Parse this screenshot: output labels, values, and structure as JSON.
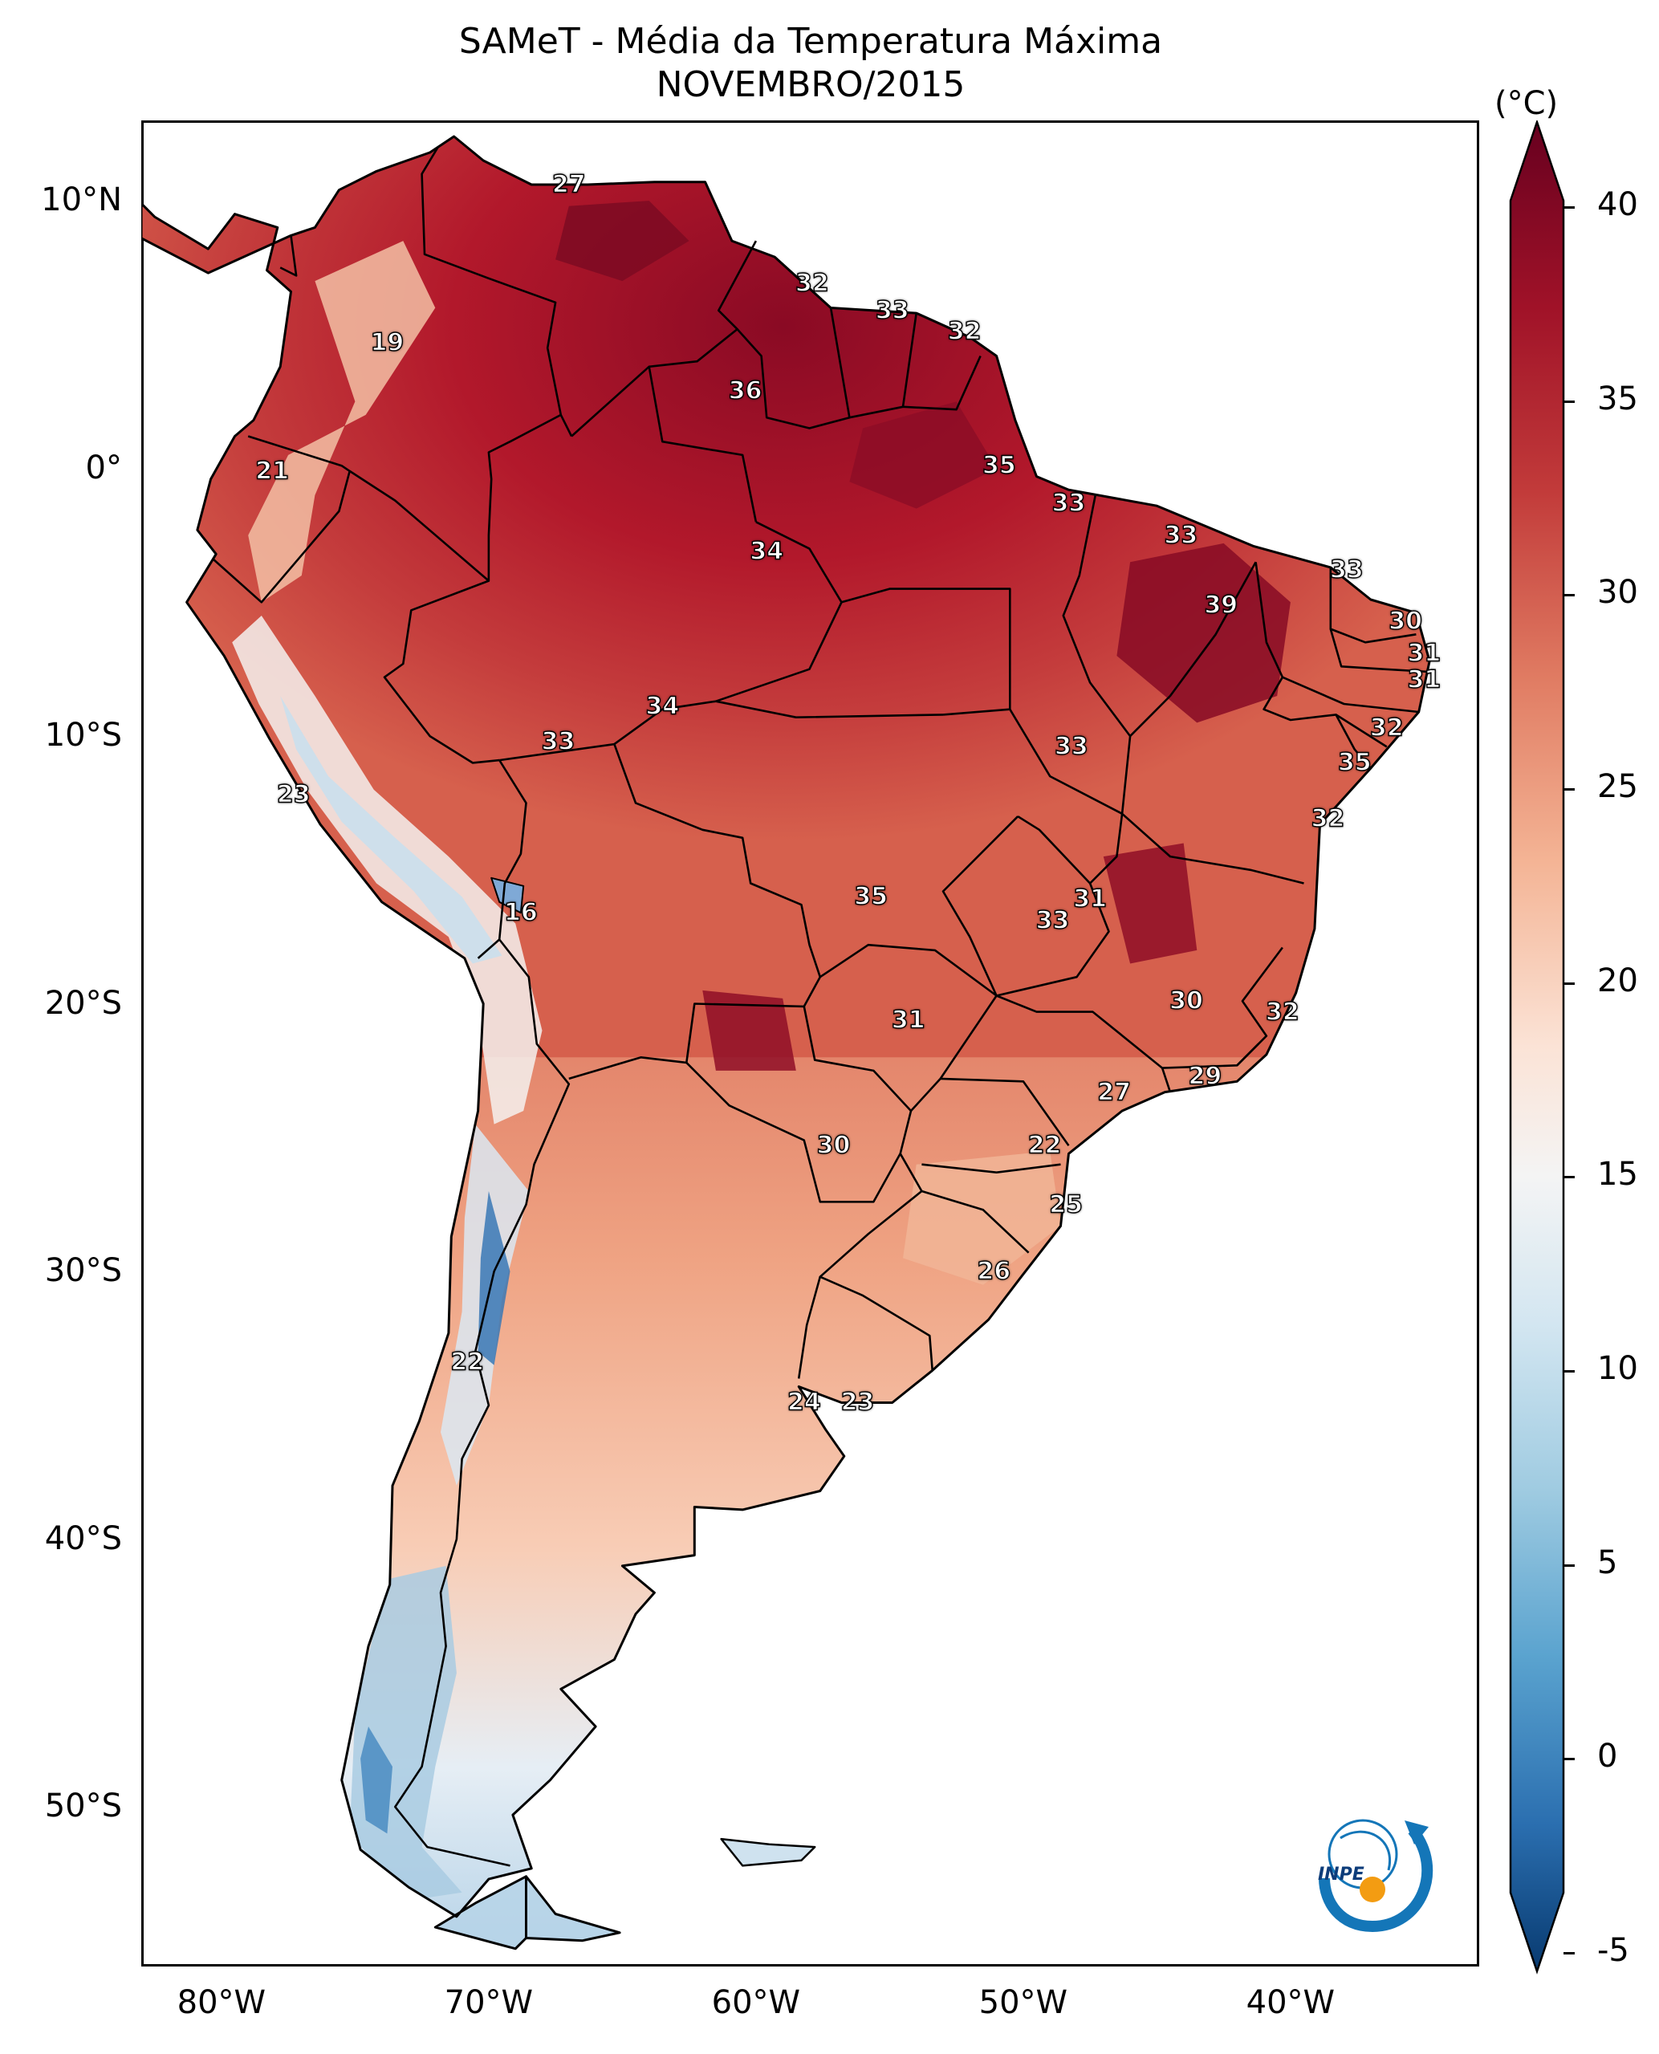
{
  "title": "SAMeT - Média da Temperatura Máxima",
  "subtitle": "NOVEMBRO/2015",
  "colorbar": {
    "unit": "(°C)",
    "ticks": [
      "40",
      "35",
      "30",
      "25",
      "20",
      "15",
      "10",
      "5",
      "0",
      "-5"
    ],
    "colors": [
      "#67001f",
      "#b2182b",
      "#d6604d",
      "#f4a582",
      "#fddbc7",
      "#f7f7f7",
      "#d1e5f0",
      "#92c5de",
      "#4393c3",
      "#2166ac",
      "#053061"
    ]
  },
  "lat_ticks": [
    "10°N",
    "0°",
    "10°S",
    "20°S",
    "30°S",
    "40°S",
    "50°S"
  ],
  "lon_ticks": [
    "80°W",
    "70°W",
    "60°W",
    "50°W",
    "40°W"
  ],
  "map": {
    "region": "South America",
    "contour_labels": [
      {
        "value": "27",
        "lon": -67.0,
        "lat": 10.6
      },
      {
        "value": "32",
        "lon": -57.9,
        "lat": 6.9
      },
      {
        "value": "33",
        "lon": -54.9,
        "lat": 5.9
      },
      {
        "value": "32",
        "lon": -52.2,
        "lat": 5.1
      },
      {
        "value": "19",
        "lon": -73.8,
        "lat": 4.7
      },
      {
        "value": "36",
        "lon": -60.4,
        "lat": 2.9
      },
      {
        "value": "21",
        "lon": -78.1,
        "lat": -0.1
      },
      {
        "value": "35",
        "lon": -50.9,
        "lat": 0.1
      },
      {
        "value": "33",
        "lon": -48.3,
        "lat": -1.3
      },
      {
        "value": "33",
        "lon": -44.1,
        "lat": -2.5
      },
      {
        "value": "34",
        "lon": -59.6,
        "lat": -3.1
      },
      {
        "value": "33",
        "lon": -37.9,
        "lat": -3.8
      },
      {
        "value": "39",
        "lon": -42.6,
        "lat": -5.1
      },
      {
        "value": "30",
        "lon": -35.7,
        "lat": -5.7
      },
      {
        "value": "31",
        "lon": -35.0,
        "lat": -6.9
      },
      {
        "value": "31",
        "lon": -35.0,
        "lat": -7.9
      },
      {
        "value": "34",
        "lon": -63.5,
        "lat": -8.9
      },
      {
        "value": "33",
        "lon": -67.4,
        "lat": -10.2
      },
      {
        "value": "33",
        "lon": -48.2,
        "lat": -10.4
      },
      {
        "value": "32",
        "lon": -36.4,
        "lat": -9.7
      },
      {
        "value": "35",
        "lon": -37.6,
        "lat": -11.0
      },
      {
        "value": "23",
        "lon": -77.3,
        "lat": -12.2
      },
      {
        "value": "32",
        "lon": -38.6,
        "lat": -13.1
      },
      {
        "value": "35",
        "lon": -55.7,
        "lat": -16.0
      },
      {
        "value": "31",
        "lon": -47.5,
        "lat": -16.1
      },
      {
        "value": "33",
        "lon": -48.9,
        "lat": -16.9
      },
      {
        "value": "16",
        "lon": -68.8,
        "lat": -16.6
      },
      {
        "value": "30",
        "lon": -43.9,
        "lat": -19.9
      },
      {
        "value": "32",
        "lon": -40.3,
        "lat": -20.3
      },
      {
        "value": "31",
        "lon": -54.3,
        "lat": -20.6
      },
      {
        "value": "27",
        "lon": -46.6,
        "lat": -23.3
      },
      {
        "value": "29",
        "lon": -43.2,
        "lat": -22.7
      },
      {
        "value": "30",
        "lon": -57.1,
        "lat": -25.3
      },
      {
        "value": "22",
        "lon": -49.2,
        "lat": -25.3
      },
      {
        "value": "25",
        "lon": -48.4,
        "lat": -27.5
      },
      {
        "value": "26",
        "lon": -51.1,
        "lat": -30.0
      },
      {
        "value": "22",
        "lon": -70.8,
        "lat": -33.4
      },
      {
        "value": "24",
        "lon": -58.2,
        "lat": -34.9
      },
      {
        "value": "23",
        "lon": -56.2,
        "lat": -34.9
      }
    ]
  },
  "logo_text": "INPE"
}
